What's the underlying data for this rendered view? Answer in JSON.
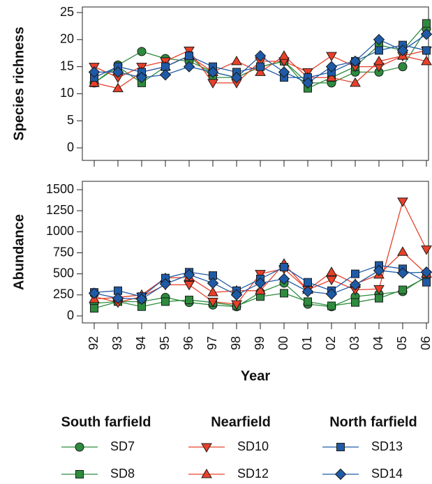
{
  "chart_data": [
    {
      "type": "line",
      "ylabel": "Species richness",
      "ylim": [
        0,
        25
      ],
      "yticks": [
        0,
        5,
        10,
        15,
        20,
        25
      ],
      "series": [
        {
          "color": "#2e8b3e",
          "marker": "circle",
          "values": [
            12,
            15.3,
            17.8,
            16.5,
            16,
            14,
            13,
            15,
            16,
            12,
            12,
            14,
            14,
            15,
            22
          ]
        },
        {
          "color": "#2e8b3e",
          "marker": "square",
          "values": [
            12,
            15,
            12,
            15,
            17,
            13,
            13,
            15,
            16,
            11,
            13,
            15,
            19,
            18,
            23
          ]
        },
        {
          "color": "#e8402a",
          "marker": "triangle-down",
          "values": [
            15,
            13,
            15,
            16,
            18,
            12,
            12,
            16,
            16,
            14,
            17,
            15,
            15,
            17,
            18
          ]
        },
        {
          "color": "#e8402a",
          "marker": "triangle-up",
          "values": [
            12,
            11,
            14,
            15,
            17,
            14,
            16,
            14,
            17,
            13,
            13,
            12,
            16,
            17,
            16
          ]
        },
        {
          "color": "#1f5aa6",
          "marker": "square",
          "values": [
            13,
            15,
            14,
            15,
            17,
            15,
            14,
            15,
            13,
            13,
            14,
            16,
            18,
            19,
            18
          ]
        },
        {
          "color": "#1f5aa6",
          "marker": "diamond",
          "values": [
            14,
            14,
            13,
            13.5,
            15,
            14,
            13,
            17,
            14,
            12,
            15,
            16,
            20,
            18,
            21
          ]
        }
      ]
    },
    {
      "type": "line",
      "ylabel": "Abundance",
      "xlabel": "Year",
      "ylim": [
        0,
        1500
      ],
      "yticks": [
        0,
        250,
        500,
        750,
        1000,
        1250,
        1500
      ],
      "categories": [
        "92",
        "93",
        "94",
        "95",
        "96",
        "97",
        "98",
        "99",
        "00",
        "01",
        "02",
        "03",
        "04",
        "05",
        "06"
      ],
      "legend_groups": [
        "South farfield",
        "Nearfield",
        "North farfield"
      ],
      "series": [
        {
          "name": "SD7",
          "color": "#2e8b3e",
          "marker": "circle",
          "values": [
            150,
            170,
            170,
            220,
            160,
            130,
            110,
            280,
            390,
            140,
            110,
            230,
            260,
            290,
            470
          ]
        },
        {
          "name": "SD8",
          "color": "#2e8b3e",
          "marker": "square",
          "values": [
            90,
            170,
            110,
            170,
            190,
            160,
            120,
            230,
            270,
            170,
            120,
            160,
            210,
            310,
            460
          ]
        },
        {
          "name": "SD10",
          "color": "#e8402a",
          "marker": "triangle-down",
          "values": [
            230,
            160,
            230,
            370,
            370,
            170,
            140,
            500,
            560,
            310,
            430,
            310,
            320,
            1360,
            790
          ]
        },
        {
          "name": "SD12",
          "color": "#e8402a",
          "marker": "triangle-up",
          "values": [
            200,
            220,
            250,
            450,
            460,
            280,
            300,
            300,
            620,
            310,
            520,
            380,
            490,
            760,
            500
          ]
        },
        {
          "name": "SD13",
          "color": "#1f5aa6",
          "marker": "square",
          "values": [
            280,
            300,
            230,
            450,
            520,
            480,
            300,
            440,
            580,
            400,
            300,
            500,
            600,
            560,
            400
          ]
        },
        {
          "name": "SD14",
          "color": "#1f5aa6",
          "marker": "diamond",
          "values": [
            270,
            210,
            200,
            380,
            490,
            390,
            250,
            390,
            440,
            290,
            260,
            370,
            540,
            510,
            520
          ]
        }
      ]
    }
  ]
}
